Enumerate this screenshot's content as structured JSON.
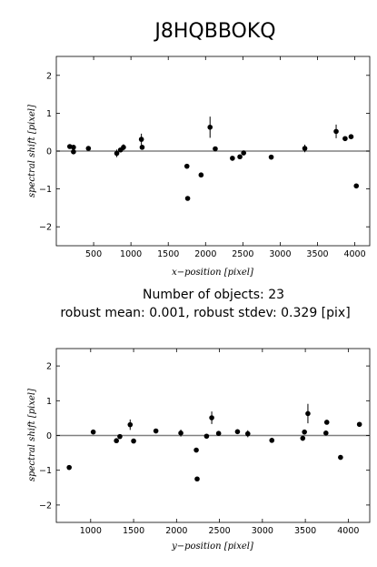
{
  "title": "J8HQBBOKQ",
  "stats": {
    "count_text": "Number of objects: 23",
    "robust_text": "robust mean: 0.001, robust stdev: 0.329 [pix]"
  },
  "chart_data": [
    {
      "type": "scatter",
      "xlabel": "x−position [pixel]",
      "ylabel": "spectral shift [pixel]",
      "xlim": [
        0,
        4200
      ],
      "ylim": [
        -2.5,
        2.5
      ],
      "x_ticks": [
        500,
        1000,
        1500,
        2000,
        2500,
        3000,
        3500,
        4000
      ],
      "y_ticks": [
        -2,
        -1,
        0,
        1,
        2
      ],
      "y_tick_labels": [
        "−2",
        "−1",
        "0",
        "1",
        "2"
      ],
      "reference_line": 0,
      "points": [
        {
          "x": 180,
          "y": 0.12,
          "err": 0.04
        },
        {
          "x": 230,
          "y": 0.1,
          "err": 0.04
        },
        {
          "x": 230,
          "y": -0.02,
          "err": 0.04
        },
        {
          "x": 430,
          "y": 0.07,
          "err": 0.03
        },
        {
          "x": 810,
          "y": -0.06,
          "err": 0.1
        },
        {
          "x": 860,
          "y": 0.03,
          "err": 0.06
        },
        {
          "x": 900,
          "y": 0.1,
          "err": 0.08
        },
        {
          "x": 1140,
          "y": 0.31,
          "err": 0.15
        },
        {
          "x": 1150,
          "y": 0.1,
          "err": 0.05
        },
        {
          "x": 1750,
          "y": -0.4,
          "err": 0.03
        },
        {
          "x": 1760,
          "y": -1.25,
          "err": 0.03
        },
        {
          "x": 1940,
          "y": -0.63,
          "err": 0.03
        },
        {
          "x": 2060,
          "y": 0.63,
          "err": 0.28
        },
        {
          "x": 2130,
          "y": 0.06,
          "err": 0.03
        },
        {
          "x": 2360,
          "y": -0.19,
          "err": 0.03
        },
        {
          "x": 2460,
          "y": -0.15,
          "err": 0.03
        },
        {
          "x": 2510,
          "y": -0.05,
          "err": 0.06
        },
        {
          "x": 2880,
          "y": -0.16,
          "err": 0.03
        },
        {
          "x": 3330,
          "y": 0.07,
          "err": 0.1
        },
        {
          "x": 3750,
          "y": 0.52,
          "err": 0.18
        },
        {
          "x": 3870,
          "y": 0.33,
          "err": 0.03
        },
        {
          "x": 3950,
          "y": 0.38,
          "err": 0.03
        },
        {
          "x": 4020,
          "y": -0.92,
          "err": 0.06
        }
      ]
    },
    {
      "type": "scatter",
      "xlabel": "y−position [pixel]",
      "ylabel": "spectral shift [pixel]",
      "xlim": [
        600,
        4250
      ],
      "ylim": [
        -2.5,
        2.5
      ],
      "x_ticks": [
        1000,
        1500,
        2000,
        2500,
        3000,
        3500,
        4000
      ],
      "y_ticks": [
        -2,
        -1,
        0,
        1,
        2
      ],
      "y_tick_labels": [
        "−2",
        "−1",
        "0",
        "1",
        "2"
      ],
      "reference_line": 0,
      "points": [
        {
          "x": 750,
          "y": -0.92,
          "err": 0.06
        },
        {
          "x": 1030,
          "y": 0.1,
          "err": 0.05
        },
        {
          "x": 1300,
          "y": -0.15,
          "err": 0.03
        },
        {
          "x": 1340,
          "y": -0.03,
          "err": 0.05
        },
        {
          "x": 1460,
          "y": 0.31,
          "err": 0.15
        },
        {
          "x": 1500,
          "y": -0.16,
          "err": 0.03
        },
        {
          "x": 1760,
          "y": 0.13,
          "err": 0.03
        },
        {
          "x": 2050,
          "y": 0.07,
          "err": 0.1
        },
        {
          "x": 2230,
          "y": -0.42,
          "err": 0.03
        },
        {
          "x": 2240,
          "y": -1.25,
          "err": 0.03
        },
        {
          "x": 2350,
          "y": -0.02,
          "err": 0.04
        },
        {
          "x": 2410,
          "y": 0.51,
          "err": 0.18
        },
        {
          "x": 2490,
          "y": 0.06,
          "err": 0.03
        },
        {
          "x": 2710,
          "y": 0.11,
          "err": 0.06
        },
        {
          "x": 2830,
          "y": 0.05,
          "err": 0.1
        },
        {
          "x": 3110,
          "y": -0.14,
          "err": 0.03
        },
        {
          "x": 3470,
          "y": -0.08,
          "err": 0.07
        },
        {
          "x": 3490,
          "y": 0.1,
          "err": 0.07
        },
        {
          "x": 3530,
          "y": 0.63,
          "err": 0.28
        },
        {
          "x": 3740,
          "y": 0.07,
          "err": 0.03
        },
        {
          "x": 3750,
          "y": 0.38,
          "err": 0.03
        },
        {
          "x": 3910,
          "y": -0.63,
          "err": 0.03
        },
        {
          "x": 4130,
          "y": 0.32,
          "err": 0.03
        }
      ]
    }
  ]
}
